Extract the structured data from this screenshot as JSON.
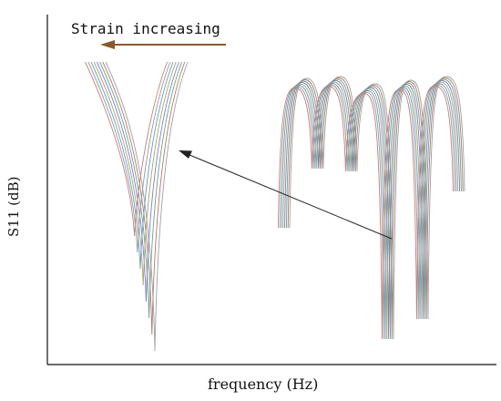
{
  "chart_data": {
    "type": "line",
    "title": "",
    "xlabel": "frequency (Hz)",
    "ylabel": "S11 (dB)",
    "annotation": "Strain increasing",
    "grid": false,
    "tick_labels": false,
    "axis_color": "#111111",
    "annotation_arrow_color": "#8b5a2b",
    "pointer_arrow_color": "#222222",
    "series_colors": [
      "#9aa0a6",
      "#b07a6a",
      "#6f9f8f",
      "#7f7fbf",
      "#a6a66a",
      "#6a9abf",
      "#999999",
      "#c08080"
    ]
  }
}
